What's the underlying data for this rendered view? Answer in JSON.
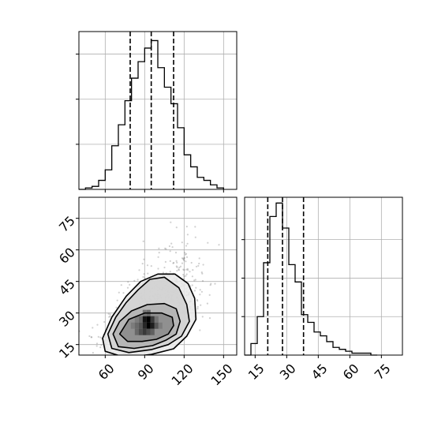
{
  "chart_data": [
    {
      "panel": "top-left",
      "type": "histogram",
      "variable": "x",
      "xlim": [
        40,
        160
      ],
      "grid": true,
      "bins": [
        {
          "x0": 40,
          "x1": 45,
          "value": 0
        },
        {
          "x0": 45,
          "x1": 50,
          "value": 1
        },
        {
          "x0": 50,
          "x1": 55,
          "value": 2
        },
        {
          "x0": 55,
          "x1": 60,
          "value": 6
        },
        {
          "x0": 60,
          "x1": 65,
          "value": 13
        },
        {
          "x0": 65,
          "x1": 70,
          "value": 29
        },
        {
          "x0": 70,
          "x1": 75,
          "value": 43
        },
        {
          "x0": 75,
          "x1": 80,
          "value": 59
        },
        {
          "x0": 80,
          "x1": 85,
          "value": 74
        },
        {
          "x0": 85,
          "x1": 90,
          "value": 85
        },
        {
          "x0": 90,
          "x1": 95,
          "value": 94
        },
        {
          "x0": 95,
          "x1": 100,
          "value": 99
        },
        {
          "x0": 100,
          "x1": 105,
          "value": 81
        },
        {
          "x0": 105,
          "x1": 110,
          "value": 68
        },
        {
          "x0": 110,
          "x1": 115,
          "value": 57
        },
        {
          "x0": 115,
          "x1": 120,
          "value": 41
        },
        {
          "x0": 120,
          "x1": 125,
          "value": 23
        },
        {
          "x0": 125,
          "x1": 130,
          "value": 15
        },
        {
          "x0": 130,
          "x1": 135,
          "value": 8
        },
        {
          "x0": 135,
          "x1": 140,
          "value": 6
        },
        {
          "x0": 140,
          "x1": 145,
          "value": 3
        },
        {
          "x0": 145,
          "x1": 150,
          "value": 1
        }
      ],
      "quantiles": [
        79,
        95,
        112
      ],
      "ylim": [
        0,
        105
      ],
      "y_ticks": [
        30,
        60,
        90
      ],
      "x_ticks": [
        60,
        90,
        120,
        150
      ]
    },
    {
      "panel": "bottom-left",
      "type": "scatter-density",
      "xlim": [
        40,
        160
      ],
      "ylim": [
        10,
        85
      ],
      "x_ticks": [
        60,
        90,
        120,
        150
      ],
      "x_tick_labels": [
        "60",
        "90",
        "120",
        "150"
      ],
      "y_ticks": [
        15,
        30,
        45,
        60,
        75
      ],
      "y_tick_labels": [
        "15",
        "30",
        "45",
        "60",
        "75"
      ],
      "grid": true,
      "density_peak": {
        "x": 93,
        "y": 25
      },
      "contours": [
        {
          "level": 1,
          "points": [
            [
              71,
              20
            ],
            [
              77,
              16.5
            ],
            [
              88,
              16.5
            ],
            [
              99,
              17.5
            ],
            [
              108,
              20
            ],
            [
              112,
              24
            ],
            [
              111,
              28
            ],
            [
              103,
              30
            ],
            [
              90,
              30
            ],
            [
              78,
              27
            ]
          ]
        },
        {
          "level": 2,
          "points": [
            [
              66,
              20
            ],
            [
              70,
              14
            ],
            [
              82,
              13.2
            ],
            [
              96,
              14.5
            ],
            [
              106,
              17
            ],
            [
              114,
              20
            ],
            [
              117,
              26
            ],
            [
              114,
              32
            ],
            [
              105,
              34.5
            ],
            [
              92,
              34
            ],
            [
              80,
              31
            ],
            [
              71,
              26
            ]
          ]
        },
        {
          "level": 3,
          "points": [
            [
              62,
              20
            ],
            [
              65,
              13.2
            ],
            [
              78,
              11.2
            ],
            [
              95,
              12.6
            ],
            [
              108,
              15
            ],
            [
              118,
              19
            ],
            [
              124,
              26
            ],
            [
              122,
              34
            ],
            [
              116,
              42
            ],
            [
              105,
              47
            ],
            [
              94,
              46
            ],
            [
              85,
              41
            ],
            [
              76,
              35
            ],
            [
              68,
              28
            ]
          ]
        },
        {
          "level": 4,
          "points": [
            [
              58,
              18
            ],
            [
              60,
              11.8
            ],
            [
              75,
              8.9
            ],
            [
              95,
              10.3
            ],
            [
              112,
              13
            ],
            [
              122,
              19
            ],
            [
              129,
              27
            ],
            [
              128,
              37
            ],
            [
              123,
              44
            ],
            [
              113,
              48.5
            ],
            [
              100,
              48.5
            ],
            [
              87,
              45
            ],
            [
              76,
              38
            ],
            [
              65,
              28
            ]
          ]
        }
      ],
      "density_cells": [
        {
          "x": 87,
          "y": 24,
          "v": 0.55
        },
        {
          "x": 90,
          "y": 24,
          "v": 0.8
        },
        {
          "x": 93,
          "y": 24,
          "v": 1.0
        },
        {
          "x": 96,
          "y": 24,
          "v": 0.85
        },
        {
          "x": 99,
          "y": 24,
          "v": 0.55
        },
        {
          "x": 87,
          "y": 27,
          "v": 0.45
        },
        {
          "x": 90,
          "y": 27,
          "v": 0.9
        },
        {
          "x": 93,
          "y": 27,
          "v": 1.0
        },
        {
          "x": 96,
          "y": 27,
          "v": 0.7
        },
        {
          "x": 99,
          "y": 27,
          "v": 0.4
        },
        {
          "x": 84,
          "y": 21,
          "v": 0.45
        },
        {
          "x": 87,
          "y": 21,
          "v": 0.6
        },
        {
          "x": 90,
          "y": 21,
          "v": 0.7
        },
        {
          "x": 93,
          "y": 21,
          "v": 0.6
        },
        {
          "x": 96,
          "y": 21,
          "v": 0.5
        },
        {
          "x": 81,
          "y": 24,
          "v": 0.35
        },
        {
          "x": 84,
          "y": 24,
          "v": 0.45
        },
        {
          "x": 102,
          "y": 24,
          "v": 0.35
        },
        {
          "x": 84,
          "y": 27,
          "v": 0.35
        },
        {
          "x": 93,
          "y": 30,
          "v": 0.45
        },
        {
          "x": 90,
          "y": 30,
          "v": 0.4
        }
      ]
    },
    {
      "panel": "bottom-right",
      "type": "histogram",
      "variable": "y",
      "xlim": [
        10,
        85
      ],
      "grid": true,
      "bins": [
        {
          "x0": 10,
          "x1": 13,
          "value": 0
        },
        {
          "x0": 13,
          "x1": 16,
          "value": 6
        },
        {
          "x0": 16,
          "x1": 19,
          "value": 20
        },
        {
          "x0": 19,
          "x1": 22,
          "value": 48
        },
        {
          "x0": 22,
          "x1": 25,
          "value": 72
        },
        {
          "x0": 25,
          "x1": 28,
          "value": 79
        },
        {
          "x0": 28,
          "x1": 31,
          "value": 66
        },
        {
          "x0": 31,
          "x1": 34,
          "value": 47
        },
        {
          "x0": 34,
          "x1": 37,
          "value": 38
        },
        {
          "x0": 37,
          "x1": 40,
          "value": 21
        },
        {
          "x0": 40,
          "x1": 43,
          "value": 17
        },
        {
          "x0": 43,
          "x1": 46,
          "value": 12
        },
        {
          "x0": 46,
          "x1": 49,
          "value": 10
        },
        {
          "x0": 49,
          "x1": 52,
          "value": 7
        },
        {
          "x0": 52,
          "x1": 55,
          "value": 4
        },
        {
          "x0": 55,
          "x1": 58,
          "value": 3
        },
        {
          "x0": 58,
          "x1": 61,
          "value": 2
        },
        {
          "x0": 61,
          "x1": 64,
          "value": 1
        },
        {
          "x0": 64,
          "x1": 67,
          "value": 1
        },
        {
          "x0": 67,
          "x1": 70,
          "value": 1
        },
        {
          "x0": 70,
          "x1": 73,
          "value": 0
        }
      ],
      "quantiles": [
        21,
        28,
        38
      ],
      "ylim": [
        0,
        82
      ],
      "y_ticks": [
        20,
        40,
        60
      ],
      "x_ticks": [
        15,
        30,
        45,
        60,
        75
      ],
      "x_tick_labels": [
        "15",
        "30",
        "45",
        "60",
        "75"
      ]
    }
  ]
}
